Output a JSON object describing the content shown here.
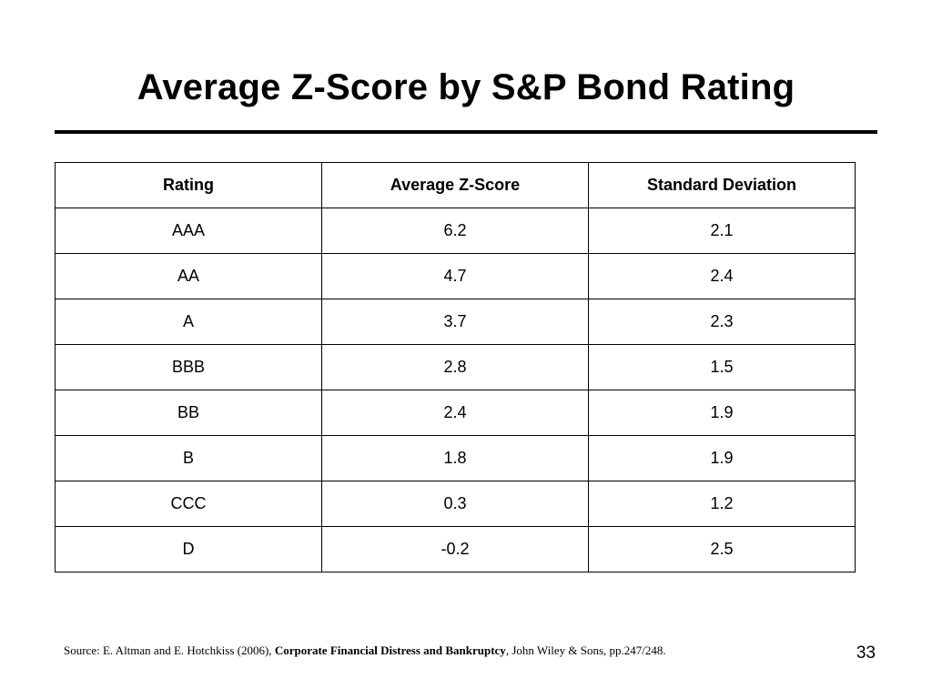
{
  "slide": {
    "title": "Average Z-Score by S&P Bond Rating",
    "page_number": "33"
  },
  "table": {
    "headers": [
      "Rating",
      "Average Z-Score",
      "Standard Deviation"
    ],
    "rows": [
      [
        "AAA",
        "6.2",
        "2.1"
      ],
      [
        "AA",
        "4.7",
        "2.4"
      ],
      [
        "A",
        "3.7",
        "2.3"
      ],
      [
        "BBB",
        "2.8",
        "1.5"
      ],
      [
        "BB",
        "2.4",
        "1.9"
      ],
      [
        "B",
        "1.8",
        "1.9"
      ],
      [
        "CCC",
        "0.3",
        "1.2"
      ],
      [
        "D",
        "-0.2",
        "2.5"
      ]
    ]
  },
  "source": {
    "prefix": "Source: E. Altman and E. Hotchkiss (2006), ",
    "book_title": "Corporate Financial Distress and Bankruptcy",
    "suffix": ", John Wiley & Sons, pp.247/248."
  }
}
